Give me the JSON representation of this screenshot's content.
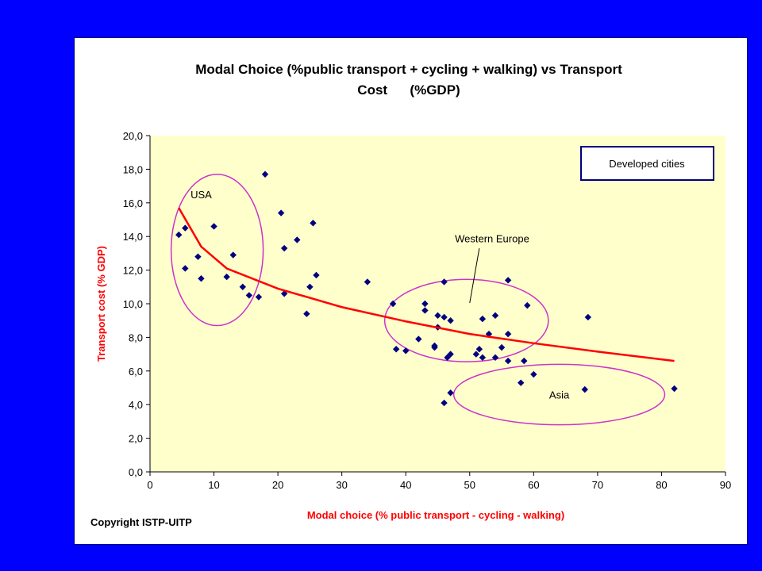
{
  "copyright": "Copyright ISTP-UITP",
  "colors": {
    "background": "#0000ff",
    "plot_area": "#ffffcc",
    "marker": "#000080",
    "trend": "#ff0000",
    "ellipse": "#cc33cc",
    "axis_title": "#ff0000"
  },
  "chart_data": {
    "type": "scatter",
    "title_lines": [
      "Modal Choice (%public transport + cycling + walking) vs Transport",
      "Cost      (%GDP)"
    ],
    "xlabel": "Modal choice (% public transport - cycling - walking)",
    "ylabel": "Transport cost (% GDP)",
    "xlim": [
      0,
      90
    ],
    "ylim": [
      0,
      20
    ],
    "x_ticks": [
      "0",
      "10",
      "20",
      "30",
      "40",
      "50",
      "60",
      "70",
      "80",
      "90"
    ],
    "y_ticks": [
      "0,0",
      "2,0",
      "4,0",
      "6,0",
      "8,0",
      "10,0",
      "12,0",
      "14,0",
      "16,0",
      "18,0",
      "20,0"
    ],
    "grid": false,
    "legend": {
      "label": "Developed cities",
      "placement": "top-right"
    },
    "annotations": [
      "USA",
      "Western Europe",
      "Asia"
    ],
    "points": [
      [
        4.5,
        14.1
      ],
      [
        5.5,
        14.5
      ],
      [
        5.5,
        12.1
      ],
      [
        7.5,
        12.8
      ],
      [
        8,
        11.5
      ],
      [
        10,
        14.6
      ],
      [
        12,
        11.6
      ],
      [
        13,
        12.9
      ],
      [
        14.5,
        11.0
      ],
      [
        15.5,
        10.5
      ],
      [
        17,
        10.4
      ],
      [
        18,
        17.7
      ],
      [
        20.5,
        15.4
      ],
      [
        21,
        13.3
      ],
      [
        21,
        10.6
      ],
      [
        23,
        13.8
      ],
      [
        24.5,
        9.4
      ],
      [
        25,
        11.0
      ],
      [
        25.5,
        14.8
      ],
      [
        26,
        11.7
      ],
      [
        34,
        11.3
      ],
      [
        38,
        10.0
      ],
      [
        38.5,
        7.3
      ],
      [
        40,
        7.2
      ],
      [
        42,
        7.9
      ],
      [
        43,
        10.0
      ],
      [
        43,
        9.6
      ],
      [
        44.5,
        7.5
      ],
      [
        44.5,
        7.4
      ],
      [
        45,
        8.6
      ],
      [
        45,
        9.3
      ],
      [
        46,
        9.2
      ],
      [
        46,
        11.3
      ],
      [
        46,
        4.1
      ],
      [
        46.5,
        6.8
      ],
      [
        47,
        7.0
      ],
      [
        47,
        9.0
      ],
      [
        47,
        4.7
      ],
      [
        51,
        7.0
      ],
      [
        51.5,
        7.3
      ],
      [
        52,
        9.1
      ],
      [
        52,
        6.8
      ],
      [
        53,
        8.2
      ],
      [
        54,
        9.3
      ],
      [
        54,
        6.8
      ],
      [
        55,
        7.4
      ],
      [
        56,
        11.4
      ],
      [
        56,
        8.2
      ],
      [
        56,
        6.6
      ],
      [
        58,
        5.3
      ],
      [
        58.5,
        6.6
      ],
      [
        59,
        9.9
      ],
      [
        60,
        5.8
      ],
      [
        68,
        4.9
      ],
      [
        68.5,
        9.2
      ],
      [
        82,
        4.95
      ]
    ],
    "trendline": {
      "type": "power",
      "points": [
        [
          4.5,
          15.7
        ],
        [
          8,
          13.4
        ],
        [
          12,
          12.1
        ],
        [
          20,
          10.9
        ],
        [
          30,
          9.8
        ],
        [
          40,
          8.95
        ],
        [
          50,
          8.2
        ],
        [
          60,
          7.65
        ],
        [
          70,
          7.15
        ],
        [
          82,
          6.6
        ]
      ]
    },
    "groups": [
      {
        "label": "USA",
        "cx": 10.5,
        "cy": 13.2,
        "rx": 7.2,
        "ry": 4.5
      },
      {
        "label": "Western Europe",
        "cx": 49.5,
        "cy": 9.0,
        "rx": 12.8,
        "ry": 2.45
      },
      {
        "label": "Asia",
        "cx": 64,
        "cy": 4.6,
        "rx": 16.5,
        "ry": 1.8
      }
    ]
  }
}
